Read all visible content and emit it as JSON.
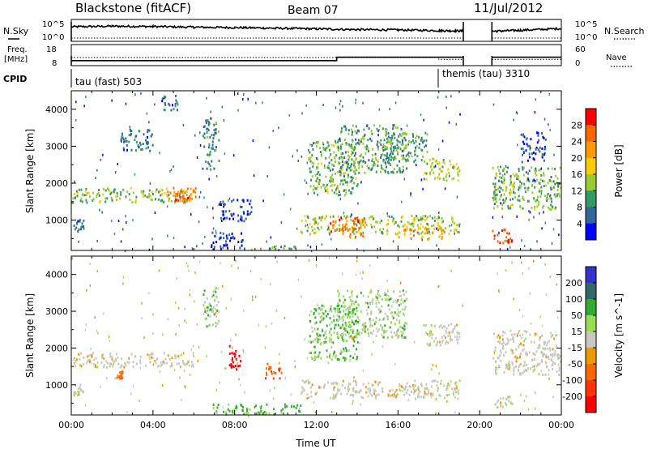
{
  "header": {
    "station": "Blackstone (fitACF)",
    "beam": "Beam 07",
    "date": "11/Jul/2012"
  },
  "labels": {
    "nsky": "N.Sky",
    "nsearch": "N.Search",
    "freq_line1": "Freq.",
    "freq_line2": "[MHz]",
    "nave": "Nave",
    "cpid": "CPID",
    "exp1": "tau (fast) 503",
    "exp2": "themis (tau) 3310",
    "noise_ticks_left": [
      "10^5",
      "10^0"
    ],
    "noise_ticks_right": [
      "10^5",
      "10^0"
    ],
    "freq_ticks": [
      "18",
      "8"
    ],
    "nave_ticks": [
      "60",
      "0"
    ]
  },
  "chart_data": [
    {
      "type": "line",
      "panel": "noise",
      "series": [
        {
          "name": "N.Sky",
          "x": [
            0,
            2,
            4,
            6,
            8,
            10,
            12,
            14,
            16,
            18,
            19.2,
            20.6,
            22,
            24
          ],
          "y": [
            3.3,
            3.5,
            3.4,
            3.2,
            3.1,
            2.9,
            2.7,
            2.5,
            2.4,
            2.2,
            2.1,
            2.0,
            2.3,
            2.8
          ]
        },
        {
          "name": "N.Search",
          "x": [
            0,
            19.2,
            20.6,
            24
          ],
          "y": [
            0,
            0,
            0,
            0
          ]
        }
      ],
      "gaps": [
        [
          19.2,
          20.6
        ]
      ],
      "xlim": [
        0,
        24
      ]
    },
    {
      "type": "line",
      "panel": "frequency",
      "series": [
        {
          "name": "Freq.",
          "x": [
            0,
            13,
            13,
            19.2,
            20.6,
            24
          ],
          "y": [
            10.4,
            10.4,
            12.0,
            12.0,
            12.0,
            12.0
          ]
        },
        {
          "name": "Nave",
          "x": [
            0,
            18,
            18,
            19.2,
            20.6,
            24
          ],
          "y": [
            23,
            23,
            18,
            18,
            18,
            18
          ]
        }
      ],
      "gaps": [
        [
          19.2,
          20.6
        ]
      ],
      "xlim": [
        0,
        24
      ],
      "ylim_left": [
        8,
        18
      ],
      "ylim_right": [
        0,
        60
      ]
    },
    {
      "type": "heatmap",
      "panel": "power",
      "ylabel": "Slant Range [km]",
      "yticks": [
        "1000",
        "2000",
        "3000",
        "4000"
      ],
      "ylim": [
        180,
        4500
      ],
      "colorbar_label": "Power [dB]",
      "colorbar_ticks": [
        "28",
        "24",
        "20",
        "16",
        "12",
        "8",
        "4"
      ],
      "colorbar_colors": [
        "#ff0000",
        "#ff6600",
        "#ff9900",
        "#ffcc00",
        "#99cc33",
        "#339966",
        "#336699",
        "#0000ff"
      ],
      "regions": [
        {
          "t0": 0.0,
          "t1": 6.0,
          "r0": 1500,
          "r1": 1900,
          "level": 13
        },
        {
          "t0": 4.6,
          "t1": 6.1,
          "r0": 1600,
          "r1": 1900,
          "level": 22
        },
        {
          "t0": 5.0,
          "t1": 5.8,
          "r0": 1500,
          "r1": 1700,
          "level": 24
        },
        {
          "t0": 0.1,
          "t1": 0.6,
          "r0": 700,
          "r1": 1050,
          "level": 8
        },
        {
          "t0": 2.4,
          "t1": 4.0,
          "r0": 2900,
          "r1": 3500,
          "level": 8
        },
        {
          "t0": 4.4,
          "t1": 5.2,
          "r0": 4000,
          "r1": 4400,
          "level": 8
        },
        {
          "t0": 6.4,
          "t1": 7.2,
          "r0": 2400,
          "r1": 3800,
          "level": 9
        },
        {
          "t0": 7.2,
          "t1": 8.8,
          "r0": 1000,
          "r1": 1600,
          "level": 6
        },
        {
          "t0": 6.8,
          "t1": 8.4,
          "r0": 150,
          "r1": 700,
          "level": 5
        },
        {
          "t0": 8.4,
          "t1": 11.2,
          "r0": 180,
          "r1": 330,
          "level": 10
        },
        {
          "t0": 11.2,
          "t1": 19.0,
          "r0": 650,
          "r1": 1150,
          "level": 14
        },
        {
          "t0": 12.6,
          "t1": 14.4,
          "r0": 550,
          "r1": 1100,
          "level": 23
        },
        {
          "t0": 16.0,
          "t1": 18.2,
          "r0": 500,
          "r1": 800,
          "level": 20
        },
        {
          "t0": 11.6,
          "t1": 14.0,
          "r0": 1700,
          "r1": 3200,
          "level": 12
        },
        {
          "t0": 13.0,
          "t1": 16.4,
          "r0": 2300,
          "r1": 3600,
          "level": 11
        },
        {
          "t0": 15.4,
          "t1": 17.4,
          "r0": 2600,
          "r1": 3400,
          "level": 11
        },
        {
          "t0": 17.2,
          "t1": 19.0,
          "r0": 2100,
          "r1": 2700,
          "level": 14
        },
        {
          "t0": 20.6,
          "t1": 21.6,
          "r0": 400,
          "r1": 800,
          "level": 26
        },
        {
          "t0": 20.6,
          "t1": 24.0,
          "r0": 1300,
          "r1": 2500,
          "level": 12
        },
        {
          "t0": 22.0,
          "t1": 23.2,
          "r0": 2600,
          "r1": 3400,
          "level": 6
        }
      ]
    },
    {
      "type": "heatmap",
      "panel": "velocity",
      "xlabel": "Time UT",
      "ylabel": "Slant Range [km]",
      "xticks": [
        "00:00",
        "04:00",
        "08:00",
        "12:00",
        "16:00",
        "20:00",
        "00:00"
      ],
      "yticks": [
        "1000",
        "2000",
        "3000",
        "4000"
      ],
      "ylim": [
        180,
        4500
      ],
      "colorbar_label": "Velocity [m s^-1]",
      "colorbar_ticks": [
        "200",
        "100",
        "50",
        "15",
        "-15",
        "-50",
        "-100",
        "-200"
      ],
      "colorbar_colors": [
        "#3333cc",
        "#336666",
        "#33aa33",
        "#99dd55",
        "#c8c8c0",
        "#ee9900",
        "#ff6600",
        "#ff3300",
        "#ff0000"
      ],
      "regions": [
        {
          "t0": 0.0,
          "t1": 6.0,
          "r0": 1500,
          "r1": 1900,
          "v": 0
        },
        {
          "t0": 0.1,
          "t1": 0.6,
          "r0": 700,
          "r1": 1050,
          "v": 0
        },
        {
          "t0": 2.2,
          "t1": 2.5,
          "r0": 1200,
          "r1": 1400,
          "v": -80
        },
        {
          "t0": 7.7,
          "t1": 8.3,
          "r0": 1400,
          "r1": 2100,
          "v": -220
        },
        {
          "t0": 9.4,
          "t1": 10.3,
          "r0": 1200,
          "r1": 1600,
          "v": -90
        },
        {
          "t0": 6.4,
          "t1": 7.2,
          "r0": 2600,
          "r1": 3700,
          "v": 20
        },
        {
          "t0": 6.8,
          "t1": 11.2,
          "r0": 180,
          "r1": 500,
          "v": 40
        },
        {
          "t0": 11.2,
          "t1": 19.0,
          "r0": 650,
          "r1": 1150,
          "v": 0
        },
        {
          "t0": 11.6,
          "t1": 14.0,
          "r0": 1700,
          "r1": 3200,
          "v": 30
        },
        {
          "t0": 13.0,
          "t1": 16.4,
          "r0": 2300,
          "r1": 3600,
          "v": 20
        },
        {
          "t0": 17.2,
          "t1": 19.0,
          "r0": 2100,
          "r1": 2700,
          "v": 0
        },
        {
          "t0": 20.6,
          "t1": 24.0,
          "r0": 1300,
          "r1": 2500,
          "v": 0
        },
        {
          "t0": 20.6,
          "t1": 21.6,
          "r0": 400,
          "r1": 800,
          "v": 0
        }
      ]
    }
  ]
}
